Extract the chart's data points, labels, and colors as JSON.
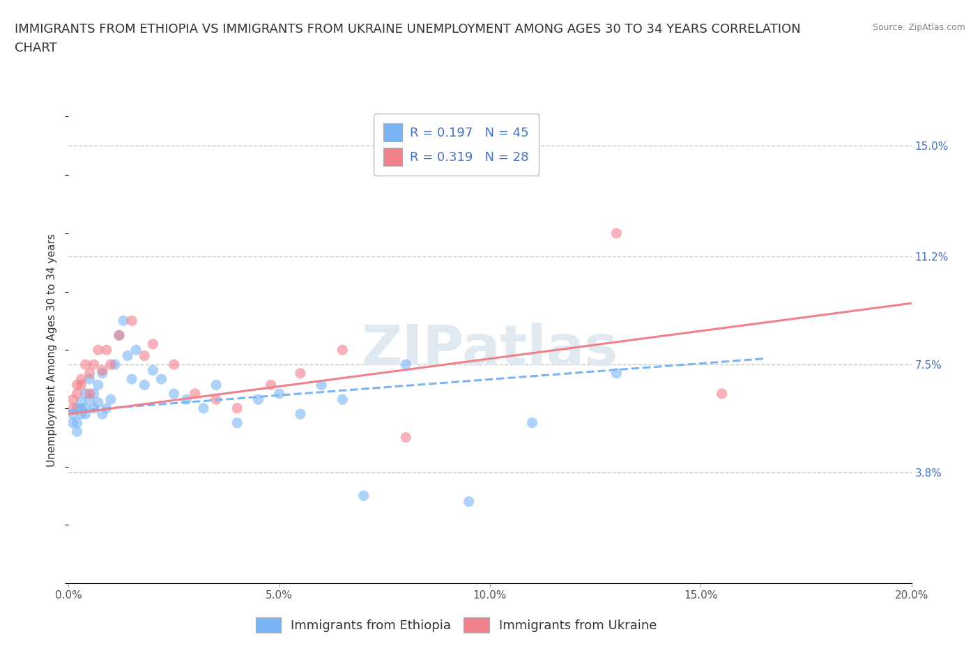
{
  "title_line1": "IMMIGRANTS FROM ETHIOPIA VS IMMIGRANTS FROM UKRAINE UNEMPLOYMENT AMONG AGES 30 TO 34 YEARS CORRELATION",
  "title_line2": "CHART",
  "source": "Source: ZipAtlas.com",
  "ylabel": "Unemployment Among Ages 30 to 34 years",
  "xlim": [
    0.0,
    0.2
  ],
  "ylim": [
    0.0,
    0.16
  ],
  "xticks": [
    0.0,
    0.05,
    0.1,
    0.15,
    0.2
  ],
  "xticklabels": [
    "0.0%",
    "5.0%",
    "10.0%",
    "15.0%",
    "20.0%"
  ],
  "ytick_positions": [
    0.038,
    0.075,
    0.112,
    0.15
  ],
  "ytick_labels": [
    "3.8%",
    "7.5%",
    "11.2%",
    "15.0%"
  ],
  "right_ytick_color": "#4472c4",
  "hline_positions": [
    0.038,
    0.075,
    0.112,
    0.15
  ],
  "hline_color": "#c8c8c8",
  "series": [
    {
      "name": "Immigrants from Ethiopia",
      "color": "#7ab4f5",
      "R": "0.197",
      "N": "45",
      "x": [
        0.001,
        0.001,
        0.002,
        0.002,
        0.002,
        0.003,
        0.003,
        0.003,
        0.004,
        0.004,
        0.004,
        0.005,
        0.005,
        0.006,
        0.006,
        0.007,
        0.007,
        0.008,
        0.008,
        0.009,
        0.01,
        0.011,
        0.012,
        0.013,
        0.014,
        0.015,
        0.016,
        0.018,
        0.02,
        0.022,
        0.025,
        0.028,
        0.032,
        0.035,
        0.04,
        0.045,
        0.05,
        0.055,
        0.06,
        0.065,
        0.07,
        0.08,
        0.095,
        0.11,
        0.13
      ],
      "y": [
        0.058,
        0.055,
        0.06,
        0.055,
        0.052,
        0.062,
        0.058,
        0.06,
        0.065,
        0.06,
        0.058,
        0.07,
        0.063,
        0.065,
        0.06,
        0.068,
        0.062,
        0.072,
        0.058,
        0.06,
        0.063,
        0.075,
        0.085,
        0.09,
        0.078,
        0.07,
        0.08,
        0.068,
        0.073,
        0.07,
        0.065,
        0.063,
        0.06,
        0.068,
        0.055,
        0.063,
        0.065,
        0.058,
        0.068,
        0.063,
        0.03,
        0.075,
        0.028,
        0.055,
        0.072
      ],
      "trend_x": [
        0.0,
        0.165
      ],
      "trend_y_start": 0.059,
      "trend_y_end": 0.077,
      "trend_style": "--"
    },
    {
      "name": "Immigrants from Ukraine",
      "color": "#f0808a",
      "R": "0.319",
      "N": "28",
      "x": [
        0.001,
        0.001,
        0.002,
        0.002,
        0.003,
        0.003,
        0.004,
        0.005,
        0.005,
        0.006,
        0.007,
        0.008,
        0.009,
        0.01,
        0.012,
        0.015,
        0.018,
        0.02,
        0.025,
        0.03,
        0.035,
        0.04,
        0.048,
        0.055,
        0.065,
        0.08,
        0.13,
        0.155
      ],
      "y": [
        0.06,
        0.063,
        0.068,
        0.065,
        0.07,
        0.068,
        0.075,
        0.065,
        0.072,
        0.075,
        0.08,
        0.073,
        0.08,
        0.075,
        0.085,
        0.09,
        0.078,
        0.082,
        0.075,
        0.065,
        0.063,
        0.06,
        0.068,
        0.072,
        0.08,
        0.05,
        0.12,
        0.065
      ],
      "trend_x": [
        0.0,
        0.2
      ],
      "trend_y_start": 0.058,
      "trend_y_end": 0.096,
      "trend_style": "-"
    }
  ],
  "watermark": "ZIPatlas",
  "title_fontsize": 13,
  "axis_label_fontsize": 11,
  "tick_fontsize": 11,
  "legend_fontsize": 13,
  "background_color": "#ffffff",
  "plot_bg_color": "#ffffff",
  "scatter_size": 120,
  "scatter_alpha": 0.6
}
